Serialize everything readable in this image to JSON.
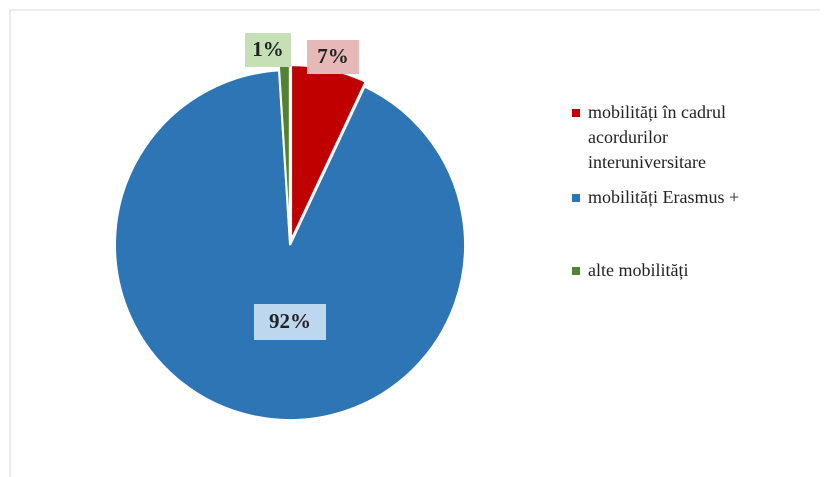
{
  "chart_data": {
    "type": "pie",
    "categories": [
      "mobilități în cadrul acordurilor interuniversitare",
      "mobilități Erasmus +",
      "alte mobilități"
    ],
    "values": [
      7,
      92,
      1
    ],
    "value_labels": [
      "7%",
      "92%",
      "1%"
    ],
    "colors": [
      "#c00000",
      "#2e75b6",
      "#548235"
    ],
    "legend": "right"
  }
}
